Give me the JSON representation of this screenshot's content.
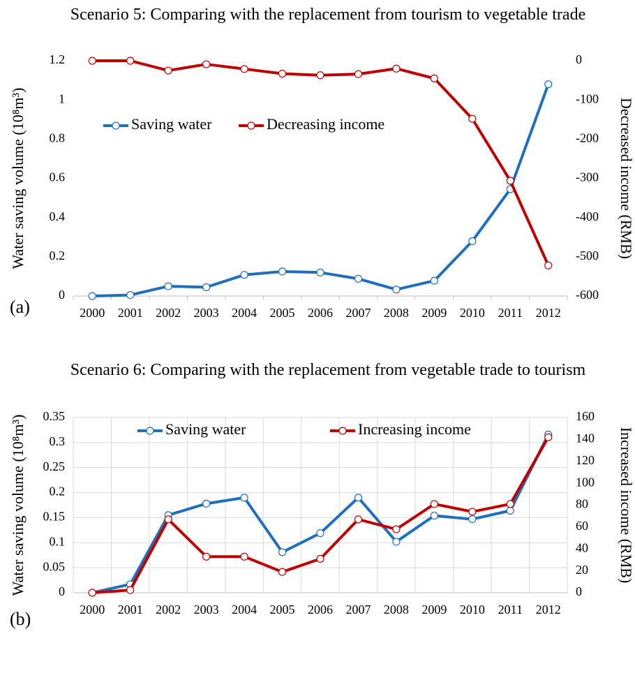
{
  "chart_data": [
    {
      "type": "line",
      "title": "Scenario 5: Comparing with the replacement from tourism to vegetable trade",
      "annotation": "(a)",
      "ylabel": "Water saving volume (10⁸m³)",
      "y2label": "Decreased income (RMB)",
      "categories": [
        "2000",
        "2001",
        "2002",
        "2003",
        "2004",
        "2005",
        "2006",
        "2007",
        "2008",
        "2009",
        "2010",
        "2011",
        "2012"
      ],
      "series": [
        {
          "name": "Saving water",
          "color": "#1f6fbf",
          "values": [
            0,
            0.005,
            0.05,
            0.045,
            0.108,
            0.125,
            0.12,
            0.088,
            0.033,
            0.078,
            0.28,
            0.545,
            1.08
          ]
        },
        {
          "name": "Decreasing income",
          "color": "#c00000",
          "axis": "y2",
          "values": [
            0,
            0,
            -25,
            -9,
            -21,
            -33,
            -37,
            -34,
            -20,
            -45,
            -148,
            -306,
            -522
          ]
        }
      ],
      "ylim": [
        0,
        1.2
      ],
      "yticks": [
        0,
        0.2,
        0.4,
        0.6,
        0.8,
        1,
        1.2
      ],
      "y2lim": [
        -600,
        0
      ],
      "y2ticks": [
        -600,
        -500,
        -400,
        -300,
        -200,
        -100,
        0
      ],
      "grid": false,
      "legend": "upper left"
    },
    {
      "type": "line",
      "title": "Scenario 6: Comparing with the replacement from vegetable trade to tourism",
      "annotation": "(b)",
      "ylabel": "Water saving volume (10⁸m³)",
      "y2label": "Increased income (RMB)",
      "categories": [
        "2000",
        "2001",
        "2002",
        "2003",
        "2004",
        "2005",
        "2006",
        "2007",
        "2008",
        "2009",
        "2010",
        "2011",
        "2012"
      ],
      "series": [
        {
          "name": "Saving water",
          "color": "#1f6fbf",
          "values": [
            0,
            0.017,
            0.155,
            0.178,
            0.19,
            0.081,
            0.119,
            0.19,
            0.102,
            0.154,
            0.147,
            0.164,
            0.316
          ]
        },
        {
          "name": "Increasing income",
          "color": "#c00000",
          "axis": "y2",
          "values": [
            0,
            2.5,
            67,
            33,
            33,
            19,
            31,
            67,
            58,
            81,
            74,
            81,
            142
          ]
        }
      ],
      "ylim": [
        0,
        0.35
      ],
      "yticks": [
        0,
        0.05,
        0.1,
        0.15,
        0.2,
        0.25,
        0.3,
        0.35
      ],
      "y2lim": [
        0,
        160
      ],
      "y2ticks": [
        0,
        20,
        40,
        60,
        80,
        100,
        120,
        140,
        160
      ],
      "grid": true,
      "legend": "upper center"
    }
  ]
}
